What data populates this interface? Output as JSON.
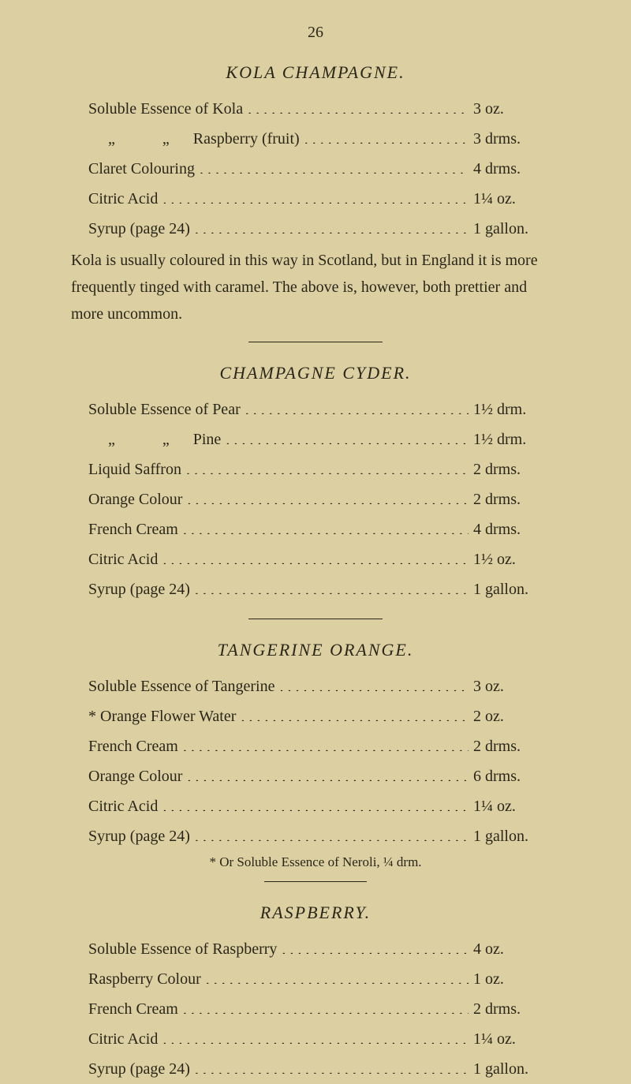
{
  "page_number": "26",
  "background_color": "#dcd0a2",
  "text_color": "#2a2619",
  "font_family": "Georgia, 'Times New Roman', serif",
  "recipes": [
    {
      "title": "KOLA CHAMPAGNE.",
      "lines": [
        {
          "ingredient": "Soluble Essence of Kola",
          "amount": "3  oz."
        },
        {
          "ingredient": "     „            „      Raspberry (fruit)",
          "amount": "3  drms."
        },
        {
          "ingredient": "Claret Colouring",
          "amount": "4  drms."
        },
        {
          "ingredient": "Citric Acid",
          "amount": "1¼ oz."
        },
        {
          "ingredient": "Syrup (page 24)",
          "amount": "1  gallon."
        }
      ],
      "note": "Kola is usually coloured in this way in Scotland, but in England it is more frequently tinged with caramel.   The above is, however, both prettier and more uncommon.",
      "footnote": null
    },
    {
      "title": "CHAMPAGNE CYDER.",
      "lines": [
        {
          "ingredient": "Soluble Essence of Pear",
          "amount": "1½ drm."
        },
        {
          "ingredient": "     „            „      Pine",
          "amount": "1½ drm."
        },
        {
          "ingredient": "Liquid Saffron",
          "amount": "2  drms."
        },
        {
          "ingredient": "Orange Colour",
          "amount": "2  drms."
        },
        {
          "ingredient": "French Cream",
          "amount": "4  drms."
        },
        {
          "ingredient": "Citric Acid",
          "amount": "1½ oz."
        },
        {
          "ingredient": "Syrup (page 24)",
          "amount": "1  gallon."
        }
      ],
      "note": null,
      "footnote": null
    },
    {
      "title": "TANGERINE ORANGE.",
      "lines": [
        {
          "ingredient": "Soluble Essence of Tangerine",
          "amount": "3  oz."
        },
        {
          "ingredient": "* Orange Flower Water",
          "amount": "2  oz."
        },
        {
          "ingredient": "French Cream",
          "amount": "2  drms."
        },
        {
          "ingredient": "Orange Colour",
          "amount": "6  drms."
        },
        {
          "ingredient": "Citric Acid",
          "amount": "1¼ oz."
        },
        {
          "ingredient": "Syrup (page 24)",
          "amount": "1  gallon."
        }
      ],
      "note": null,
      "footnote": "* Or Soluble Essence of Neroli, ¼ drm."
    },
    {
      "title": "RASPBERRY.",
      "lines": [
        {
          "ingredient": "Soluble Essence of Raspberry",
          "amount": "4  oz."
        },
        {
          "ingredient": "Raspberry Colour",
          "amount": "1  oz."
        },
        {
          "ingredient": "French Cream",
          "amount": "2  drms."
        },
        {
          "ingredient": "Citric Acid",
          "amount": "1¼ oz."
        },
        {
          "ingredient": "Syrup (page 24)",
          "amount": "1  gallon."
        }
      ],
      "note": null,
      "footnote": null
    }
  ]
}
